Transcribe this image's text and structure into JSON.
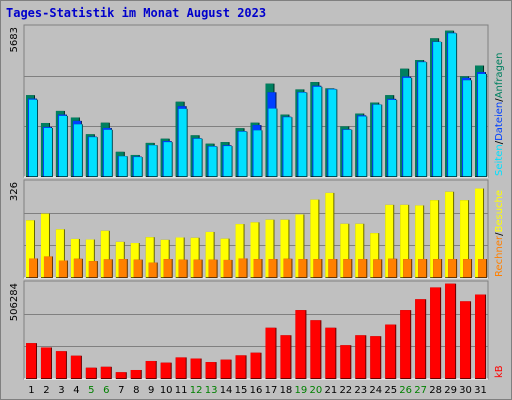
{
  "title": "Tages-Statistik im Monat August 2023",
  "colors": {
    "background": "#c0c0c0",
    "grid": "#808080",
    "hits": "#008060",
    "files": "#0040ff",
    "pages": "#00e0ff",
    "visits": "#ffff00",
    "sites": "#ff8000",
    "kbytes": "#ff0000",
    "weekend_label": "#008000",
    "weekday_label": "#000000"
  },
  "chart_data": [
    {
      "type": "bar",
      "name": "top",
      "ymax_label": "5683",
      "ymax": 5683,
      "ylim": [
        0,
        5683
      ],
      "legend": [
        "Anfragen",
        "Dateien",
        "Seiten"
      ],
      "legend_colors": [
        "#008060",
        "#0040ff",
        "#00e0ff"
      ],
      "categories": [
        "1",
        "2",
        "3",
        "4",
        "5",
        "6",
        "7",
        "8",
        "9",
        "10",
        "11",
        "12",
        "13",
        "14",
        "15",
        "16",
        "17",
        "18",
        "19",
        "20",
        "21",
        "22",
        "23",
        "24",
        "25",
        "26",
        "27",
        "28",
        "29",
        "30",
        "31"
      ],
      "series": [
        {
          "name": "Anfragen",
          "values": [
            3120,
            2060,
            2520,
            2270,
            1630,
            2070,
            960,
            840,
            1300,
            1460,
            2870,
            1590,
            1270,
            1330,
            1860,
            2070,
            3560,
            2380,
            3340,
            3620,
            3380,
            1930,
            2420,
            2840,
            3120,
            4130,
            4460,
            5290,
            5580,
            3840,
            4250
          ]
        },
        {
          "name": "Dateien",
          "values": [
            2990,
            1910,
            2380,
            2140,
            1540,
            1870,
            800,
            780,
            1220,
            1370,
            2700,
            1480,
            1180,
            1210,
            1750,
            1980,
            3230,
            2300,
            3240,
            3480,
            3360,
            1820,
            2350,
            2770,
            2980,
            3830,
            4400,
            5160,
            5500,
            3780,
            4000
          ]
        },
        {
          "name": "Seiten",
          "values": [
            2950,
            1870,
            2330,
            2010,
            1520,
            1800,
            790,
            760,
            1210,
            1330,
            2600,
            1460,
            1160,
            1180,
            1730,
            1780,
            2610,
            2280,
            3220,
            3440,
            3340,
            1800,
            2310,
            2760,
            2940,
            3780,
            4380,
            5150,
            5480,
            3690,
            3930
          ]
        }
      ]
    },
    {
      "type": "bar",
      "name": "middle",
      "ymax_label": "326",
      "ymax": 326,
      "ylim": [
        0,
        326
      ],
      "legend": [
        "Besuche",
        "Rechner"
      ],
      "legend_colors": [
        "#ffff00",
        "#ff8000"
      ],
      "categories": [
        "1",
        "2",
        "3",
        "4",
        "5",
        "6",
        "7",
        "8",
        "9",
        "10",
        "11",
        "12",
        "13",
        "14",
        "15",
        "16",
        "17",
        "18",
        "19",
        "20",
        "21",
        "22",
        "23",
        "24",
        "25",
        "26",
        "27",
        "28",
        "29",
        "30",
        "31"
      ],
      "series": [
        {
          "name": "Besuche",
          "values": [
            198,
            221,
            167,
            134,
            132,
            162,
            124,
            120,
            140,
            131,
            139,
            138,
            158,
            135,
            185,
            191,
            200,
            200,
            218,
            269,
            292,
            186,
            186,
            154,
            251,
            251,
            249,
            267,
            296,
            267,
            307
          ]
        },
        {
          "name": "Rechner",
          "values": [
            67,
            74,
            60,
            66,
            58,
            64,
            65,
            63,
            53,
            65,
            63,
            63,
            63,
            62,
            67,
            65,
            65,
            66,
            65,
            65,
            65,
            65,
            65,
            64,
            66,
            65,
            65,
            65,
            65,
            65,
            65
          ]
        }
      ]
    },
    {
      "type": "bar",
      "name": "bottom",
      "ymax_label": "506284",
      "ymax": 506284,
      "ylim": [
        0,
        506284
      ],
      "legend": [
        "kB"
      ],
      "legend_colors": [
        "#ff0000"
      ],
      "categories": [
        "1",
        "2",
        "3",
        "4",
        "5",
        "6",
        "7",
        "8",
        "9",
        "10",
        "11",
        "12",
        "13",
        "14",
        "15",
        "16",
        "17",
        "18",
        "19",
        "20",
        "21",
        "22",
        "23",
        "24",
        "25",
        "26",
        "27",
        "28",
        "29",
        "30",
        "31"
      ],
      "series": [
        {
          "name": "kB",
          "values": [
            191000,
            168000,
            148000,
            124000,
            60000,
            65000,
            36000,
            48000,
            96000,
            87000,
            115000,
            109000,
            90000,
            103000,
            126000,
            140000,
            273000,
            233000,
            367000,
            313000,
            273000,
            180000,
            233000,
            228000,
            290000,
            367000,
            425000,
            488000,
            508000,
            414000,
            450000
          ]
        }
      ]
    }
  ],
  "day_labels": [
    "1",
    "2",
    "3",
    "4",
    "5",
    "6",
    "7",
    "8",
    "9",
    "10",
    "11",
    "12",
    "13",
    "14",
    "15",
    "16",
    "17",
    "18",
    "19",
    "20",
    "21",
    "22",
    "23",
    "24",
    "25",
    "26",
    "27",
    "28",
    "29",
    "30",
    "31"
  ],
  "weekend_days": [
    5,
    6,
    12,
    13,
    19,
    20,
    26,
    27
  ],
  "right_labels": {
    "top": [
      "Anfragen",
      "Dateien",
      "Seiten"
    ],
    "middle": [
      "Besuche",
      "Rechner"
    ],
    "bottom": [
      "kB"
    ],
    "separator": "/"
  }
}
